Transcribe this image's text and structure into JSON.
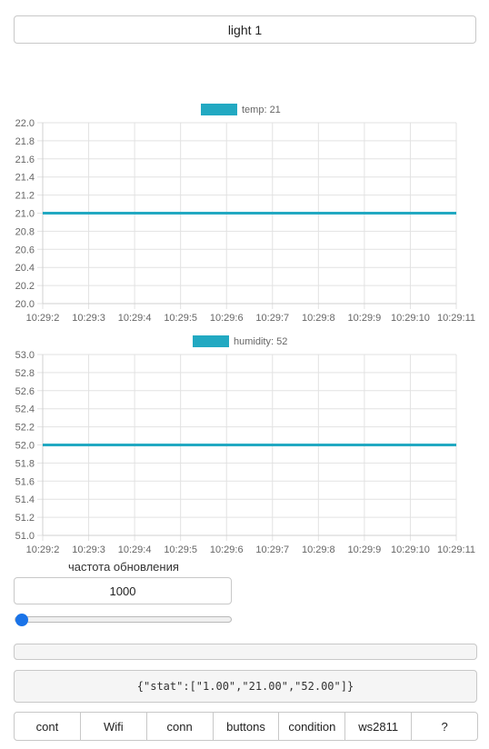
{
  "header": {
    "button_label": "light 1"
  },
  "charts": [
    {
      "legend_label": "temp: 21",
      "color": "#22a9c2",
      "chart_data": {
        "type": "line",
        "x": [
          "10:29:2",
          "10:29:3",
          "10:29:4",
          "10:29:5",
          "10:29:6",
          "10:29:7",
          "10:29:8",
          "10:29:9",
          "10:29:10",
          "10:29:11"
        ],
        "series": [
          {
            "name": "temp: 21",
            "values": [
              21,
              21,
              21,
              21,
              21,
              21,
              21,
              21,
              21,
              21
            ]
          }
        ],
        "ylim": [
          20.0,
          22.0
        ],
        "yticks": [
          "22.0",
          "21.8",
          "21.6",
          "21.4",
          "21.2",
          "21.0",
          "20.8",
          "20.6",
          "20.4",
          "20.2",
          "20.0"
        ],
        "grid": true,
        "legend": "top-center"
      }
    },
    {
      "legend_label": "humidity: 52",
      "color": "#22a9c2",
      "chart_data": {
        "type": "line",
        "x": [
          "10:29:2",
          "10:29:3",
          "10:29:4",
          "10:29:5",
          "10:29:6",
          "10:29:7",
          "10:29:8",
          "10:29:9",
          "10:29:10",
          "10:29:11"
        ],
        "series": [
          {
            "name": "humidity: 52",
            "values": [
              52,
              52,
              52,
              52,
              52,
              52,
              52,
              52,
              52,
              52
            ]
          }
        ],
        "ylim": [
          51.0,
          53.0
        ],
        "yticks": [
          "53.0",
          "52.8",
          "52.6",
          "52.4",
          "52.2",
          "52.0",
          "51.8",
          "51.6",
          "51.4",
          "51.2",
          "51.0"
        ],
        "grid": true,
        "legend": "top-center"
      }
    }
  ],
  "update_rate": {
    "label": "частота обновления",
    "value": "1000"
  },
  "status_json": "{\"stat\":[\"1.00\",\"21.00\",\"52.00\"]}",
  "tabs": [
    "cont",
    "Wifi",
    "conn",
    "buttons",
    "condition",
    "ws2811",
    "?"
  ]
}
